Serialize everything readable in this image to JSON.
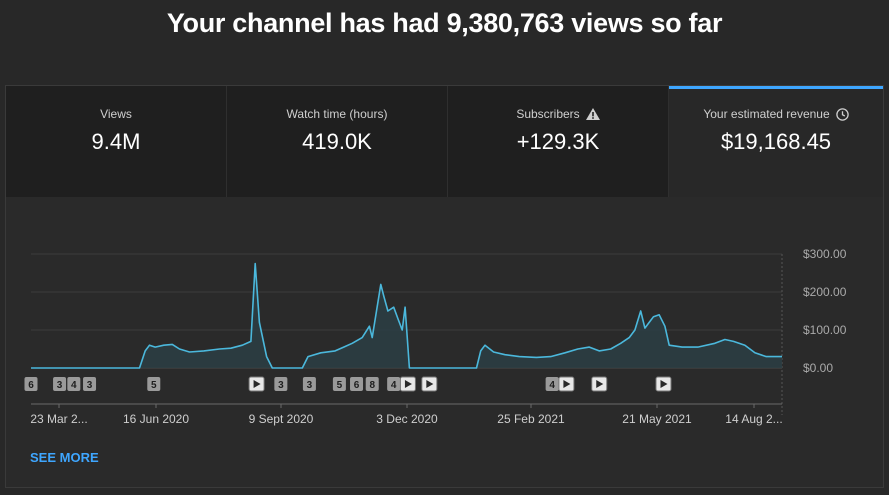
{
  "headline": "Your channel has had 9,380,763 views so far",
  "tabs": [
    {
      "label": "Views",
      "value": "9.4M"
    },
    {
      "label": "Watch time (hours)",
      "value": "419.0K"
    },
    {
      "label": "Subscribers",
      "value": "+129.3K",
      "icon": "warning-icon"
    },
    {
      "label": "Your estimated revenue",
      "value": "$19,168.45",
      "icon": "clock-icon"
    }
  ],
  "active_tab": "Your estimated revenue",
  "see_more": "SEE MORE",
  "colors": {
    "accent": "#3ea6ff",
    "line": "#4bb8dc",
    "fill": "#2c3e44",
    "grid": "#3c3c3c"
  },
  "chart_data": {
    "type": "area",
    "ylim": [
      0,
      300
    ],
    "yticks": [
      "$0.00",
      "$100.00",
      "$200.00",
      "$300.00"
    ],
    "xticks": [
      "23 Mar 2...",
      "16 Jun 2020",
      "9 Sept 2020",
      "3 Dec 2020",
      "25 Feb 2021",
      "21 May 2021",
      "14 Aug 2..."
    ],
    "x_range": [
      "2020-03-23",
      "2021-08-31"
    ],
    "series": [
      {
        "points": [
          [
            "2020-03-23",
            0
          ],
          [
            "2020-06-07",
            0
          ],
          [
            "2020-06-11",
            45
          ],
          [
            "2020-06-14",
            60
          ],
          [
            "2020-06-18",
            55
          ],
          [
            "2020-06-24",
            60
          ],
          [
            "2020-06-30",
            62
          ],
          [
            "2020-07-05",
            50
          ],
          [
            "2020-07-12",
            42
          ],
          [
            "2020-07-22",
            45
          ],
          [
            "2020-08-02",
            50
          ],
          [
            "2020-08-10",
            52
          ],
          [
            "2020-08-18",
            60
          ],
          [
            "2020-08-24",
            70
          ],
          [
            "2020-08-27",
            275
          ],
          [
            "2020-08-30",
            120
          ],
          [
            "2020-09-04",
            30
          ],
          [
            "2020-09-08",
            0
          ],
          [
            "2020-09-29",
            0
          ],
          [
            "2020-10-03",
            30
          ],
          [
            "2020-10-12",
            40
          ],
          [
            "2020-10-22",
            45
          ],
          [
            "2020-10-28",
            55
          ],
          [
            "2020-11-03",
            65
          ],
          [
            "2020-11-10",
            80
          ],
          [
            "2020-11-15",
            110
          ],
          [
            "2020-11-17",
            80
          ],
          [
            "2020-11-20",
            150
          ],
          [
            "2020-11-23",
            220
          ],
          [
            "2020-11-25",
            190
          ],
          [
            "2020-11-28",
            150
          ],
          [
            "2020-12-02",
            160
          ],
          [
            "2020-12-05",
            130
          ],
          [
            "2020-12-08",
            100
          ],
          [
            "2020-12-10",
            160
          ],
          [
            "2020-12-13",
            0
          ],
          [
            "2021-01-29",
            0
          ],
          [
            "2021-02-01",
            45
          ],
          [
            "2021-02-04",
            60
          ],
          [
            "2021-02-10",
            42
          ],
          [
            "2021-02-18",
            35
          ],
          [
            "2021-02-28",
            30
          ],
          [
            "2021-03-12",
            28
          ],
          [
            "2021-03-22",
            30
          ],
          [
            "2021-04-01",
            40
          ],
          [
            "2021-04-10",
            50
          ],
          [
            "2021-04-18",
            55
          ],
          [
            "2021-04-25",
            45
          ],
          [
            "2021-05-03",
            50
          ],
          [
            "2021-05-10",
            65
          ],
          [
            "2021-05-16",
            80
          ],
          [
            "2021-05-20",
            100
          ],
          [
            "2021-05-24",
            150
          ],
          [
            "2021-05-27",
            105
          ],
          [
            "2021-05-30",
            120
          ],
          [
            "2021-06-02",
            135
          ],
          [
            "2021-06-06",
            140
          ],
          [
            "2021-06-10",
            110
          ],
          [
            "2021-06-13",
            60
          ],
          [
            "2021-06-22",
            55
          ],
          [
            "2021-07-03",
            55
          ],
          [
            "2021-07-15",
            65
          ],
          [
            "2021-07-22",
            75
          ],
          [
            "2021-07-28",
            70
          ],
          [
            "2021-08-05",
            60
          ],
          [
            "2021-08-12",
            40
          ],
          [
            "2021-08-20",
            30
          ],
          [
            "2021-08-31",
            30
          ]
        ]
      }
    ],
    "markers": [
      {
        "date": "2020-03-23",
        "kind": "count",
        "label": "6"
      },
      {
        "date": "2020-04-12",
        "kind": "count",
        "label": "3"
      },
      {
        "date": "2020-04-22",
        "kind": "count",
        "label": "4"
      },
      {
        "date": "2020-05-03",
        "kind": "count",
        "label": "3"
      },
      {
        "date": "2020-06-17",
        "kind": "count",
        "label": "5"
      },
      {
        "date": "2020-08-28",
        "kind": "video",
        "label": ""
      },
      {
        "date": "2020-09-14",
        "kind": "count",
        "label": "3"
      },
      {
        "date": "2020-10-04",
        "kind": "count",
        "label": "3"
      },
      {
        "date": "2020-10-25",
        "kind": "count",
        "label": "5"
      },
      {
        "date": "2020-11-06",
        "kind": "count",
        "label": "6"
      },
      {
        "date": "2020-11-17",
        "kind": "count",
        "label": "8"
      },
      {
        "date": "2020-12-02",
        "kind": "count",
        "label": "4"
      },
      {
        "date": "2020-12-12",
        "kind": "video",
        "label": ""
      },
      {
        "date": "2020-12-27",
        "kind": "video",
        "label": ""
      },
      {
        "date": "2021-03-23",
        "kind": "count",
        "label": "4"
      },
      {
        "date": "2021-04-02",
        "kind": "video",
        "label": ""
      },
      {
        "date": "2021-04-25",
        "kind": "video",
        "label": ""
      },
      {
        "date": "2021-06-09",
        "kind": "video",
        "label": ""
      }
    ]
  }
}
